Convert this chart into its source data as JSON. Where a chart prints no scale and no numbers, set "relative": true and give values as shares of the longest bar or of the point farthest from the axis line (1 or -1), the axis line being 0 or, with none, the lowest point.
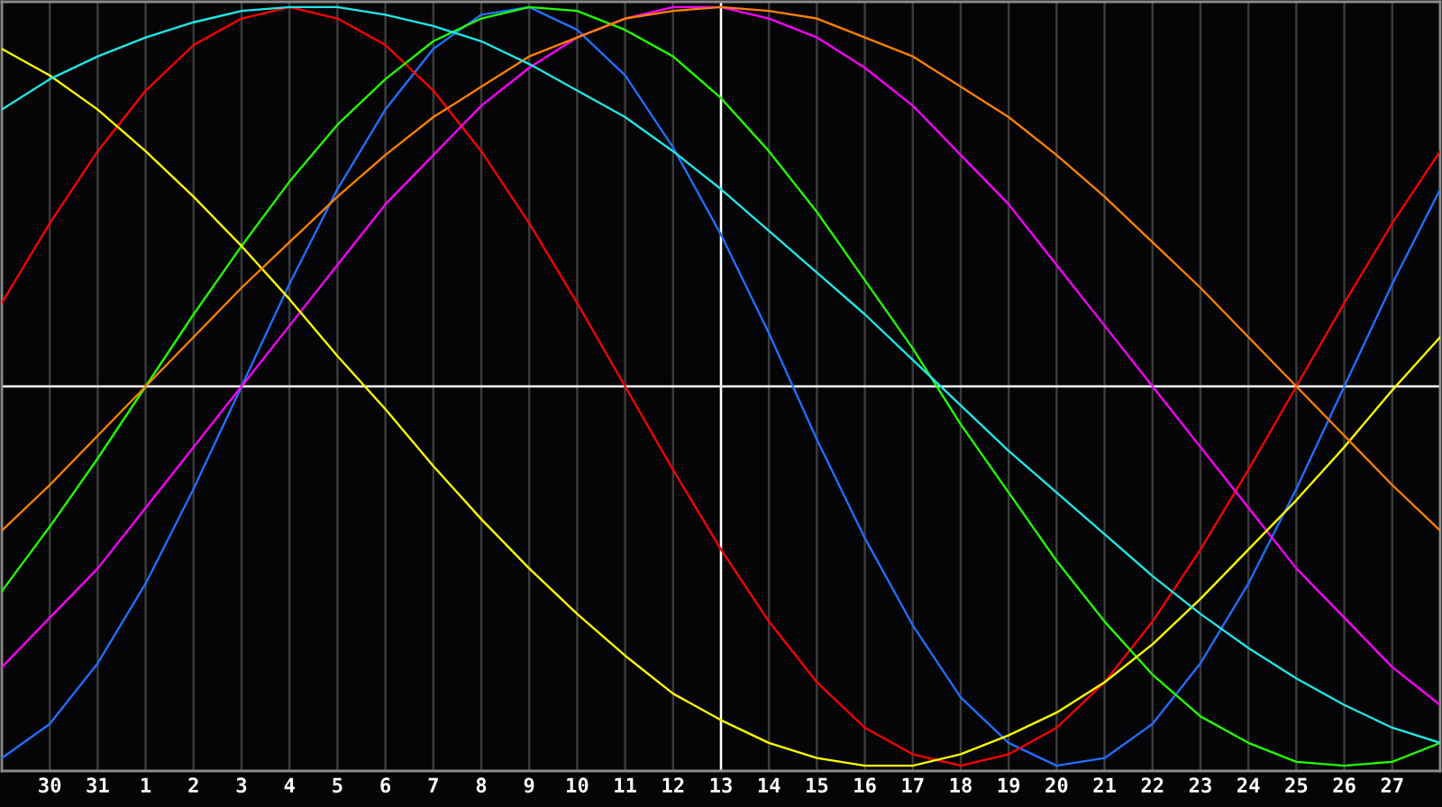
{
  "chart_data": {
    "type": "line",
    "relative": true,
    "grid": "x",
    "categories": [
      null,
      "30",
      "31",
      "1",
      "2",
      "3",
      "4",
      "5",
      "6",
      "7",
      "8",
      "9",
      "10",
      "11",
      "12",
      "13",
      "14",
      "15",
      "16",
      "17",
      "18",
      "19",
      "20",
      "21",
      "22",
      "23",
      "24",
      "25",
      "26",
      "27",
      null
    ],
    "ref_lines": [
      {
        "axis": "y",
        "value": 0,
        "color": "#ffffff"
      },
      {
        "axis": "x",
        "value": "13",
        "color": "#ffffff"
      }
    ],
    "series": [
      {
        "color": "#2070ff",
        "values": [
          -0.98,
          -0.89,
          -0.73,
          -0.52,
          -0.27,
          0,
          0.27,
          0.52,
          0.73,
          0.89,
          0.98,
          1,
          0.94,
          0.82,
          0.63,
          0.4,
          0.14,
          -0.14,
          -0.4,
          -0.63,
          -0.82,
          -0.94,
          -1,
          -0.98,
          -0.89,
          -0.73,
          -0.52,
          -0.27,
          0,
          0.27,
          0.52
        ]
      },
      {
        "color": "#ff0000",
        "values": [
          0.22,
          0.43,
          0.62,
          0.78,
          0.9,
          0.97,
          1,
          0.97,
          0.9,
          0.78,
          0.62,
          0.43,
          0.22,
          0,
          -0.22,
          -0.43,
          -0.62,
          -0.78,
          -0.9,
          -0.97,
          -1,
          -0.97,
          -0.9,
          -0.78,
          -0.62,
          -0.43,
          -0.22,
          0,
          0.22,
          0.43,
          0.62
        ]
      },
      {
        "color": "#22ff00",
        "values": [
          -0.54,
          -0.37,
          -0.19,
          0,
          0.19,
          0.37,
          0.54,
          0.69,
          0.81,
          0.91,
          0.97,
          1,
          0.99,
          0.94,
          0.87,
          0.76,
          0.62,
          0.46,
          0.28,
          0.1,
          -0.1,
          -0.28,
          -0.46,
          -0.62,
          -0.76,
          -0.87,
          -0.94,
          -0.99,
          -1,
          -0.99,
          -0.94
        ]
      },
      {
        "color": "#ff00ff",
        "values": [
          -0.74,
          -0.61,
          -0.48,
          -0.32,
          -0.16,
          0,
          0.16,
          0.32,
          0.48,
          0.61,
          0.74,
          0.84,
          0.92,
          0.97,
          1,
          1,
          0.97,
          0.92,
          0.84,
          0.74,
          0.61,
          0.48,
          0.32,
          0.16,
          0,
          -0.16,
          -0.32,
          -0.48,
          -0.61,
          -0.74,
          -0.84
        ]
      },
      {
        "color": "#ffff00",
        "values": [
          0.89,
          0.82,
          0.73,
          0.62,
          0.5,
          0.37,
          0.23,
          0.08,
          -0.06,
          -0.21,
          -0.35,
          -0.48,
          -0.6,
          -0.71,
          -0.81,
          -0.88,
          -0.94,
          -0.98,
          -1,
          -1,
          -0.97,
          -0.92,
          -0.86,
          -0.78,
          -0.68,
          -0.56,
          -0.43,
          -0.3,
          -0.16,
          -0.01,
          0.13
        ]
      },
      {
        "color": "#ff8000",
        "values": [
          -0.38,
          -0.26,
          -0.13,
          0,
          0.13,
          0.26,
          0.38,
          0.5,
          0.61,
          0.71,
          0.79,
          0.87,
          0.92,
          0.97,
          0.99,
          1,
          0.99,
          0.97,
          0.92,
          0.87,
          0.79,
          0.71,
          0.61,
          0.5,
          0.38,
          0.26,
          0.13,
          0,
          -0.13,
          -0.26,
          -0.38
        ]
      },
      {
        "color": "#22e6e6",
        "values": [
          0.73,
          0.81,
          0.87,
          0.92,
          0.96,
          0.99,
          1,
          1,
          0.98,
          0.95,
          0.91,
          0.85,
          0.78,
          0.71,
          0.62,
          0.52,
          0.41,
          0.3,
          0.19,
          0.07,
          -0.05,
          -0.17,
          -0.28,
          -0.39,
          -0.5,
          -0.6,
          -0.69,
          -0.77,
          -0.84,
          -0.9,
          -0.94
        ]
      }
    ]
  }
}
